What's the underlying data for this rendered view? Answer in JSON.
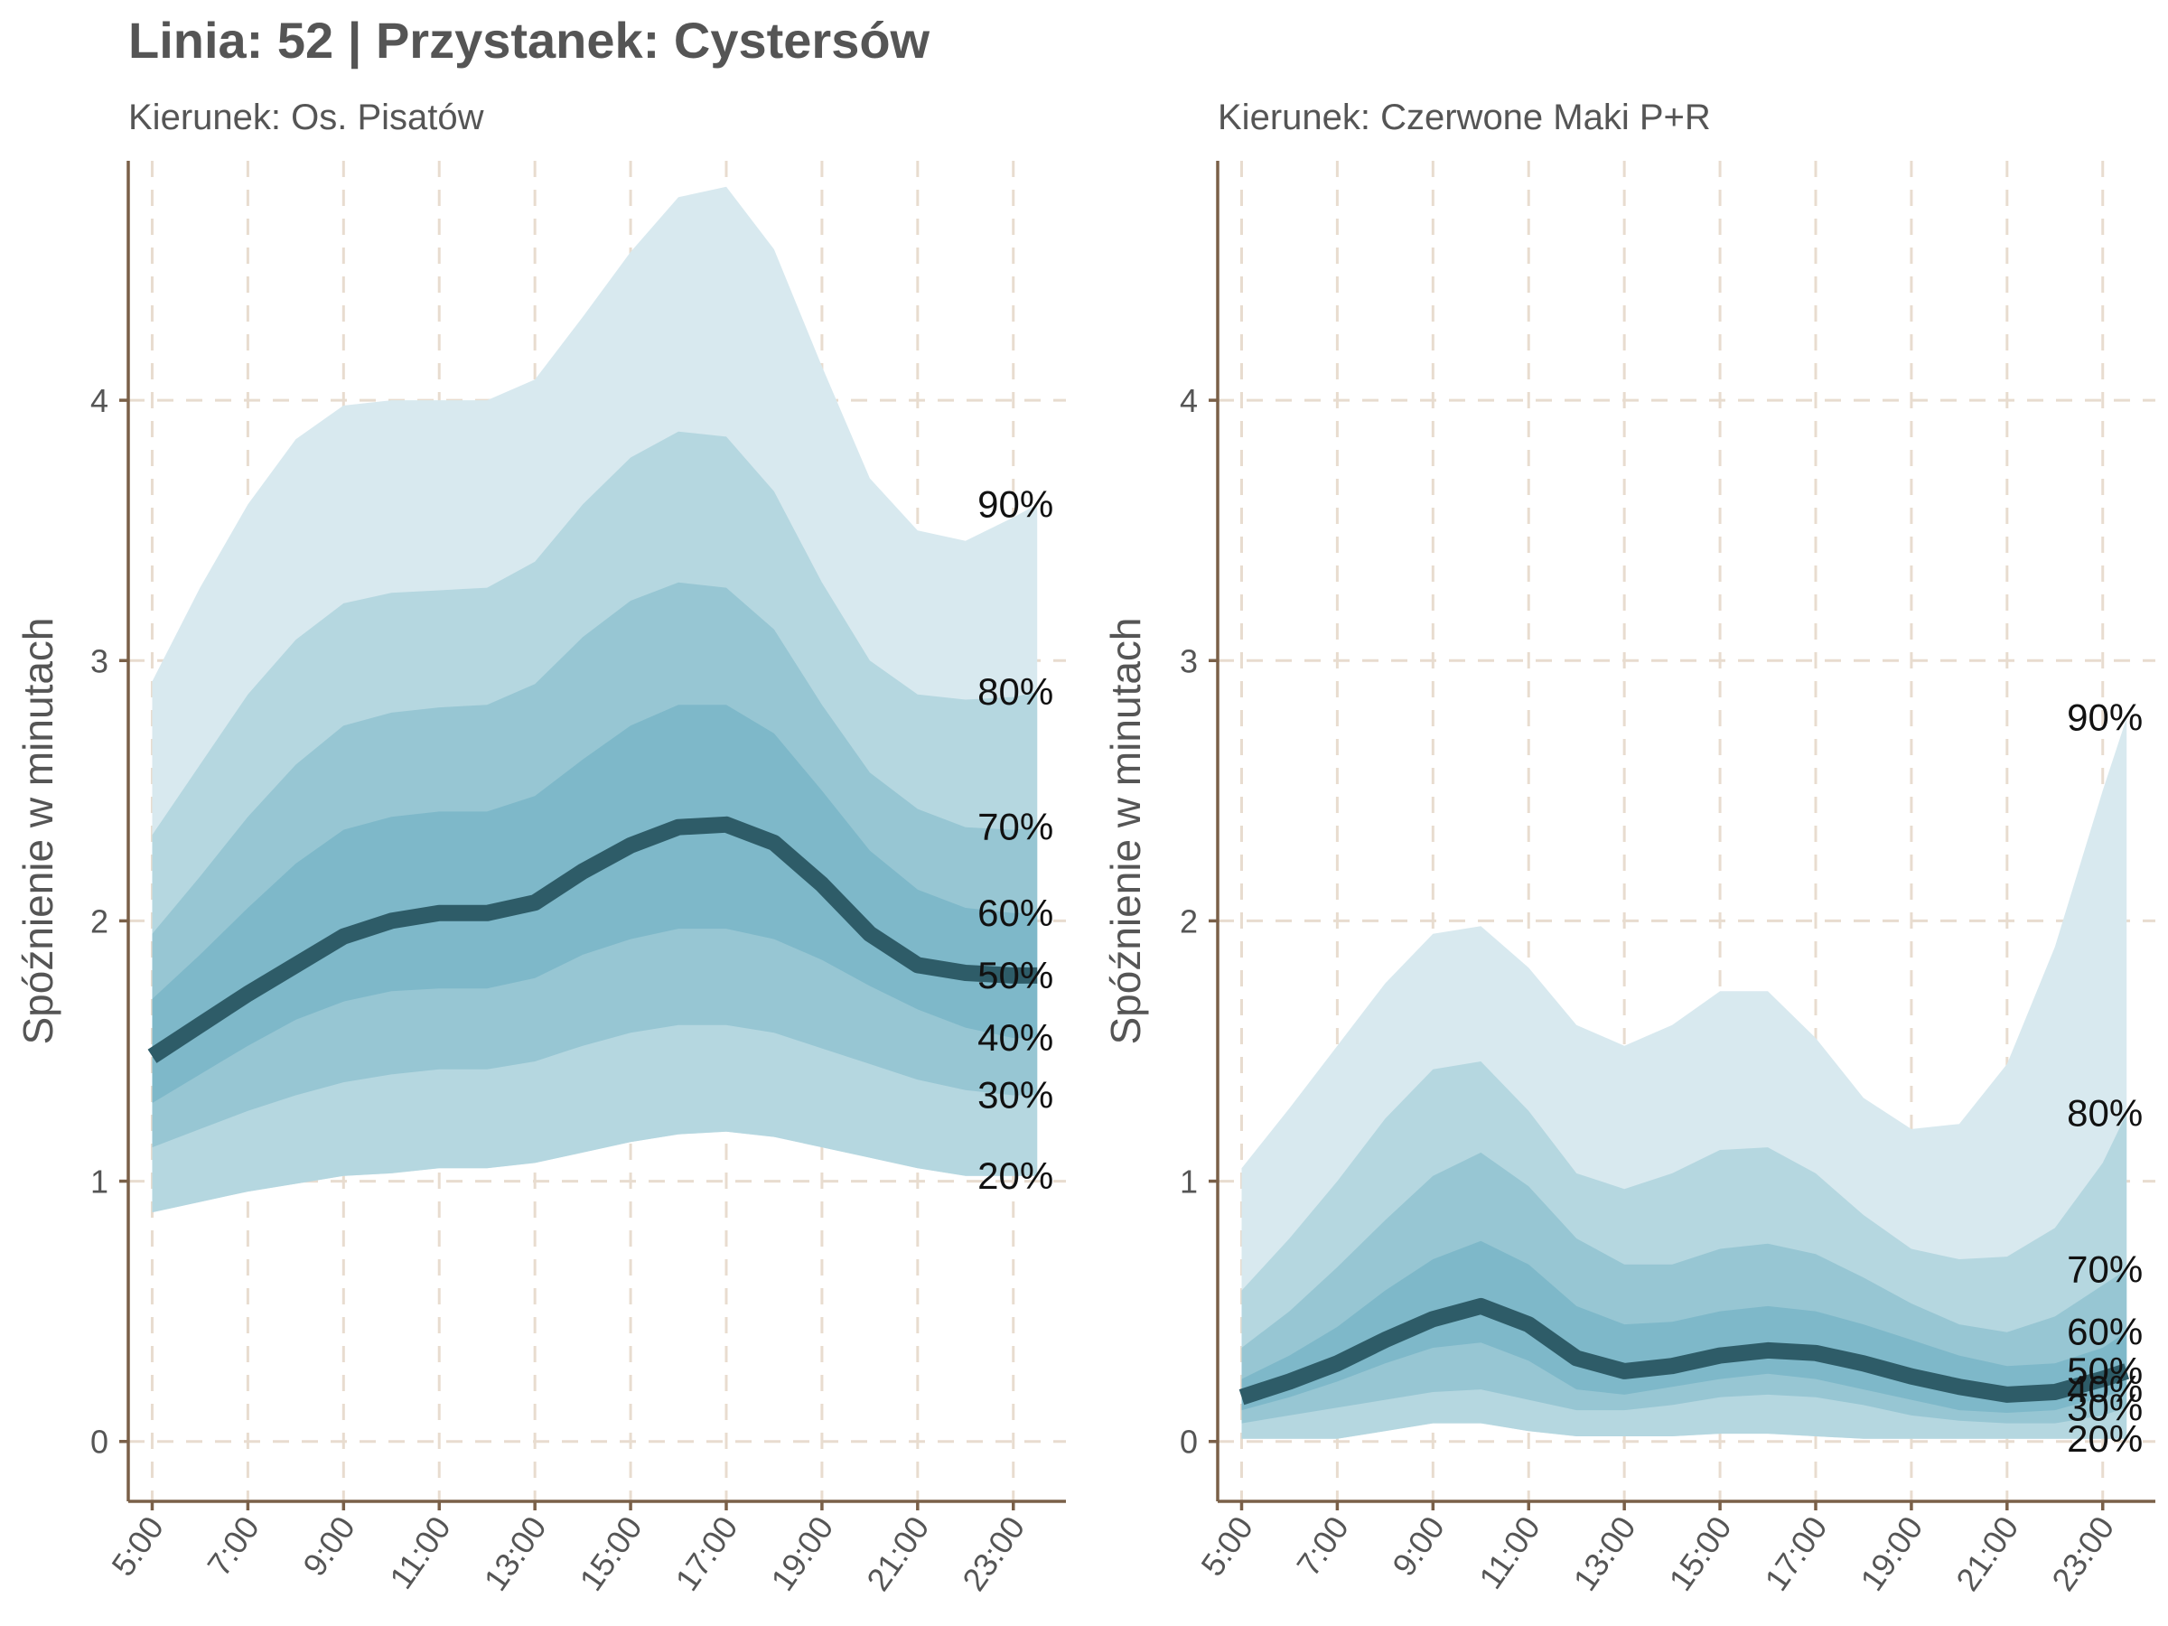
{
  "title": "Linia: 52 | Przystanek: Cystersów",
  "y_axis_label": "Spóźnienie w minutach",
  "colors": {
    "median": "#2e5c68",
    "band_90": "#d8e9ef",
    "band_80": "#b5d7e0",
    "band_70": "#97c6d3",
    "band_60": "#7eb8c9",
    "axis": "#7a6048",
    "grid": "#e8dccf"
  },
  "chart_data": {
    "type": "area",
    "y_range": [
      -0.23,
      4.92
    ],
    "x_range_hours": [
      4.5,
      24.1
    ],
    "y_ticks": [
      0,
      1,
      2,
      3,
      4
    ],
    "x_ticks": [
      "5:00",
      "7:00",
      "9:00",
      "11:00",
      "13:00",
      "15:00",
      "17:00",
      "19:00",
      "21:00",
      "23:00"
    ],
    "x_tick_hours": [
      5,
      7,
      9,
      11,
      13,
      15,
      17,
      19,
      21,
      23
    ],
    "x": [
      5,
      6,
      7,
      8,
      9,
      10,
      11,
      12,
      13,
      14,
      15,
      16,
      17,
      18,
      19,
      20,
      21,
      22,
      23,
      23.5
    ],
    "panels": [
      {
        "subtitle": "Kierunek: Os. Pisatów",
        "quantiles": {
          "20%": [
            0.88,
            0.92,
            0.96,
            0.99,
            1.02,
            1.03,
            1.05,
            1.05,
            1.07,
            1.11,
            1.15,
            1.18,
            1.19,
            1.17,
            1.13,
            1.09,
            1.05,
            1.02,
            1.02,
            1.02
          ],
          "30%": [
            1.13,
            1.2,
            1.27,
            1.33,
            1.38,
            1.41,
            1.43,
            1.43,
            1.46,
            1.52,
            1.57,
            1.6,
            1.6,
            1.57,
            1.51,
            1.45,
            1.39,
            1.35,
            1.33,
            1.33
          ],
          "40%": [
            1.3,
            1.41,
            1.52,
            1.62,
            1.69,
            1.73,
            1.74,
            1.74,
            1.78,
            1.87,
            1.93,
            1.97,
            1.97,
            1.93,
            1.85,
            1.75,
            1.66,
            1.59,
            1.55,
            1.55
          ],
          "50%": [
            1.48,
            1.6,
            1.72,
            1.83,
            1.94,
            2.0,
            2.03,
            2.03,
            2.07,
            2.19,
            2.29,
            2.36,
            2.37,
            2.3,
            2.14,
            1.95,
            1.83,
            1.8,
            1.79,
            1.79
          ],
          "60%": [
            1.7,
            1.87,
            2.05,
            2.22,
            2.35,
            2.4,
            2.42,
            2.42,
            2.48,
            2.62,
            2.75,
            2.83,
            2.83,
            2.72,
            2.5,
            2.27,
            2.12,
            2.05,
            2.03,
            2.03
          ],
          "70%": [
            1.95,
            2.17,
            2.4,
            2.6,
            2.75,
            2.8,
            2.82,
            2.83,
            2.91,
            3.09,
            3.23,
            3.3,
            3.28,
            3.12,
            2.83,
            2.57,
            2.43,
            2.36,
            2.35,
            2.36
          ],
          "80%": [
            2.33,
            2.6,
            2.87,
            3.08,
            3.22,
            3.26,
            3.27,
            3.28,
            3.38,
            3.6,
            3.78,
            3.88,
            3.86,
            3.65,
            3.3,
            3.0,
            2.87,
            2.85,
            2.86,
            2.88
          ],
          "90%": [
            2.92,
            3.28,
            3.6,
            3.85,
            3.98,
            4.0,
            4.0,
            4.0,
            4.08,
            4.32,
            4.57,
            4.78,
            4.82,
            4.58,
            4.13,
            3.7,
            3.5,
            3.46,
            3.55,
            3.6
          ]
        }
      },
      {
        "subtitle": "Kierunek: Czerwone Maki P+R",
        "quantiles": {
          "20%": [
            0.01,
            0.01,
            0.01,
            0.04,
            0.07,
            0.07,
            0.04,
            0.02,
            0.02,
            0.02,
            0.03,
            0.03,
            0.02,
            0.01,
            0.01,
            0.01,
            0.01,
            0.01,
            0.01,
            0.01
          ],
          "30%": [
            0.07,
            0.1,
            0.13,
            0.16,
            0.19,
            0.2,
            0.16,
            0.12,
            0.12,
            0.14,
            0.17,
            0.18,
            0.17,
            0.14,
            0.1,
            0.08,
            0.07,
            0.07,
            0.1,
            0.13
          ],
          "40%": [
            0.12,
            0.17,
            0.23,
            0.3,
            0.36,
            0.38,
            0.31,
            0.2,
            0.18,
            0.21,
            0.24,
            0.26,
            0.24,
            0.2,
            0.16,
            0.12,
            0.11,
            0.12,
            0.17,
            0.2
          ],
          "50%": [
            0.17,
            0.23,
            0.3,
            0.39,
            0.47,
            0.52,
            0.45,
            0.32,
            0.27,
            0.29,
            0.33,
            0.35,
            0.34,
            0.3,
            0.25,
            0.21,
            0.18,
            0.19,
            0.24,
            0.27
          ],
          "60%": [
            0.24,
            0.33,
            0.44,
            0.58,
            0.7,
            0.77,
            0.68,
            0.52,
            0.45,
            0.46,
            0.5,
            0.52,
            0.5,
            0.45,
            0.39,
            0.33,
            0.29,
            0.3,
            0.36,
            0.42
          ],
          "70%": [
            0.36,
            0.5,
            0.67,
            0.85,
            1.02,
            1.11,
            0.98,
            0.78,
            0.68,
            0.68,
            0.74,
            0.76,
            0.72,
            0.63,
            0.53,
            0.45,
            0.42,
            0.48,
            0.6,
            0.66
          ],
          "80%": [
            0.58,
            0.78,
            1.0,
            1.24,
            1.43,
            1.46,
            1.27,
            1.03,
            0.97,
            1.03,
            1.12,
            1.13,
            1.03,
            0.87,
            0.74,
            0.7,
            0.71,
            0.82,
            1.07,
            1.26
          ],
          "90%": [
            1.05,
            1.28,
            1.52,
            1.76,
            1.95,
            1.98,
            1.82,
            1.6,
            1.52,
            1.6,
            1.73,
            1.73,
            1.55,
            1.32,
            1.2,
            1.22,
            1.45,
            1.9,
            2.5,
            2.78
          ]
        }
      }
    ]
  }
}
